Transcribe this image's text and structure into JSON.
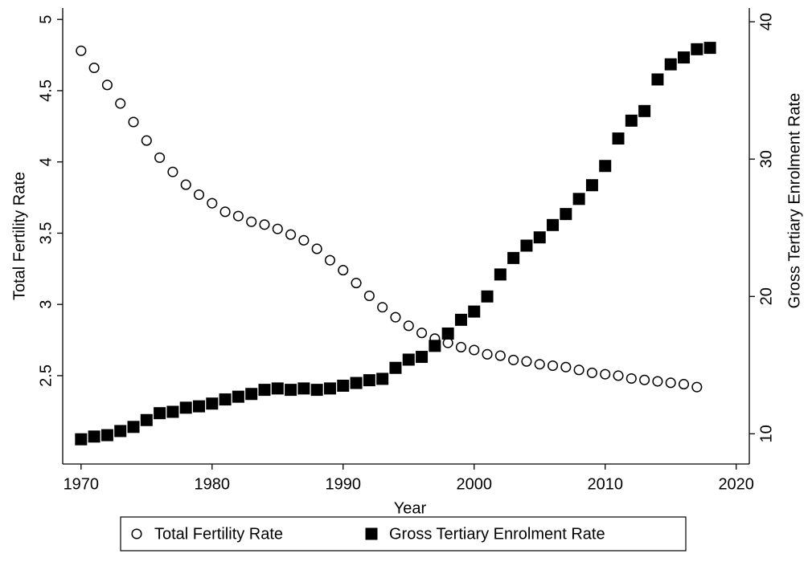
{
  "chart_data": {
    "type": "scatter",
    "x_label": "Year",
    "y_label": "Total Fertility Rate",
    "y2_label": "Gross Tertiary Enrolment Rate",
    "x": [
      1970,
      1971,
      1972,
      1973,
      1974,
      1975,
      1976,
      1977,
      1978,
      1979,
      1980,
      1981,
      1982,
      1983,
      1984,
      1985,
      1986,
      1987,
      1988,
      1989,
      1990,
      1991,
      1992,
      1993,
      1994,
      1995,
      1996,
      1997,
      1998,
      1999,
      2000,
      2001,
      2002,
      2003,
      2004,
      2005,
      2006,
      2007,
      2008,
      2009,
      2010,
      2011,
      2012,
      2013,
      2014,
      2015,
      2016,
      2017,
      2018
    ],
    "series": [
      {
        "name": "Total Fertility Rate",
        "color": "#000000",
        "marker": "circle",
        "values": [
          4.78,
          4.66,
          4.54,
          4.41,
          4.28,
          4.15,
          4.03,
          3.93,
          3.84,
          3.77,
          3.71,
          3.65,
          3.62,
          3.58,
          3.56,
          3.53,
          3.49,
          3.45,
          3.39,
          3.31,
          3.24,
          3.15,
          3.06,
          2.98,
          2.91,
          2.85,
          2.8,
          2.76,
          2.73,
          2.7,
          2.68,
          2.65,
          2.64,
          2.61,
          2.6,
          2.58,
          2.57,
          2.56,
          2.54,
          2.52,
          2.51,
          2.5,
          2.48,
          2.47,
          2.46,
          2.45,
          2.44,
          2.42,
          null
        ]
      },
      {
        "name": "Gross Tertiary Enrolment Rate",
        "color": "#000000",
        "marker": "square",
        "axis": "y2",
        "values": [
          9.6,
          9.8,
          9.9,
          10.2,
          10.5,
          11.0,
          11.5,
          11.6,
          11.9,
          12.0,
          12.2,
          12.5,
          12.7,
          12.9,
          13.2,
          13.3,
          13.2,
          13.3,
          13.2,
          13.3,
          13.5,
          13.7,
          13.9,
          14.0,
          14.8,
          15.4,
          15.6,
          16.4,
          17.3,
          18.3,
          18.9,
          20.0,
          21.6,
          22.8,
          23.7,
          24.3,
          25.2,
          26.0,
          27.1,
          28.1,
          29.5,
          31.5,
          32.8,
          33.5,
          35.8,
          36.9,
          37.4,
          38.0,
          38.1
        ]
      }
    ],
    "xlim": [
      1968.6,
      2021
    ],
    "xticks": [
      1970,
      1980,
      1990,
      2000,
      2010,
      2020
    ],
    "ylim": [
      1.88,
      5.08
    ],
    "yticks": [
      2.5,
      3,
      3.5,
      4,
      4.5,
      5
    ],
    "y2lim": [
      7.8,
      41
    ],
    "y2ticks": [
      10,
      20,
      30,
      40
    ],
    "grid": false,
    "legend": "bottom"
  }
}
